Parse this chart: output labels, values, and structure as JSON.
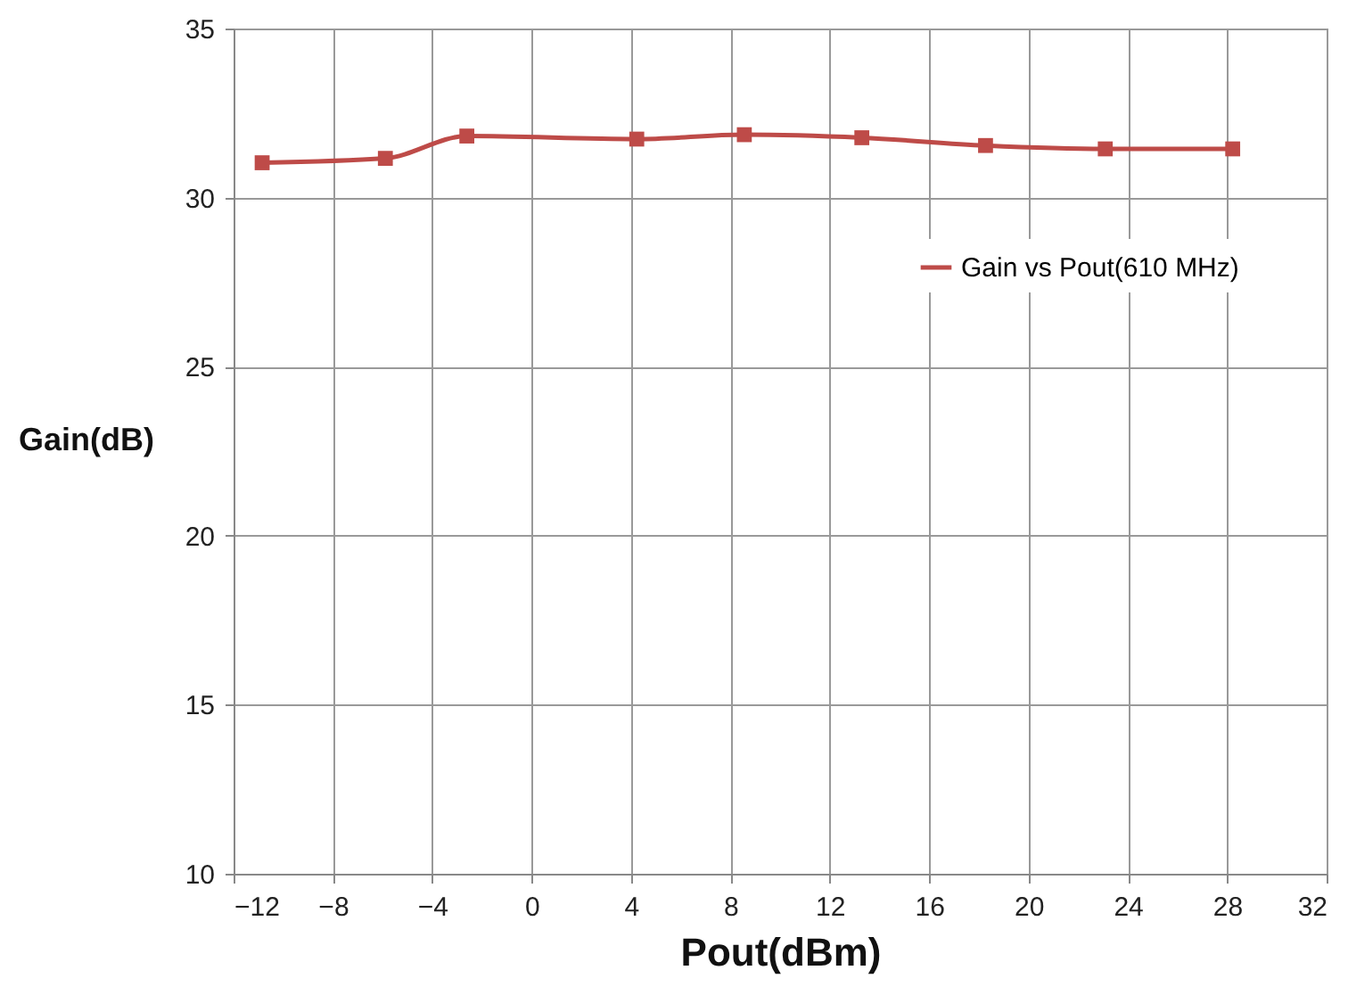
{
  "chart_data": {
    "type": "line",
    "xlabel": "Pout(dBm)",
    "ylabel": "Gain(dB)",
    "x": [
      -10.85,
      -5.89,
      -2.61,
      4.23,
      8.56,
      13.29,
      18.27,
      23.09,
      28.22
    ],
    "series": [
      {
        "name": "Gain vs Pout(610 MHz)",
        "color": "#be4b48",
        "values": [
          31.03,
          31.16,
          31.82,
          31.73,
          31.86,
          31.77,
          31.54,
          31.44,
          31.44
        ]
      }
    ],
    "xlim": [
      -12,
      32
    ],
    "xticks": [
      -12,
      -8,
      -4,
      0,
      4,
      8,
      12,
      16,
      20,
      24,
      28,
      32
    ],
    "ylim": [
      10,
      35
    ],
    "yticks": [
      10,
      15,
      20,
      25,
      30,
      35
    ],
    "grid": true,
    "legend": "top right",
    "marker": "square",
    "line_style": "solid"
  }
}
